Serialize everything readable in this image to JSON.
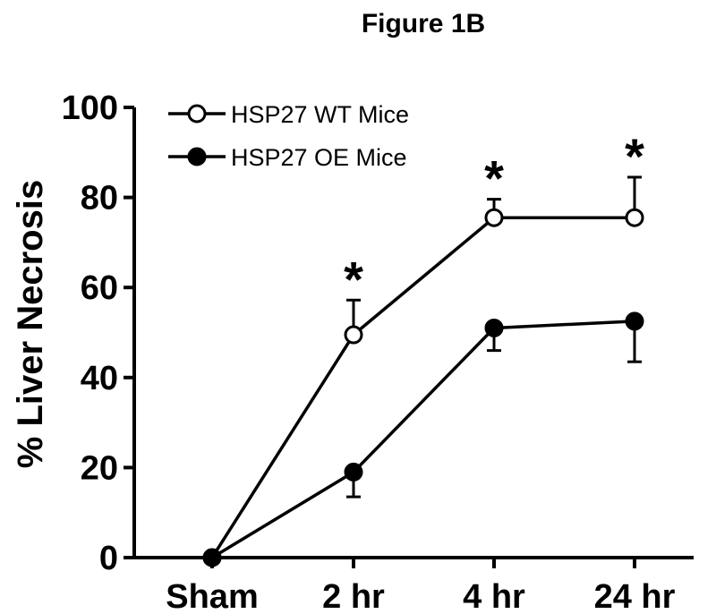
{
  "chart_data": {
    "type": "line",
    "title": "Figure 1B",
    "ylabel": "% Liver Necrosis",
    "xlabel": "",
    "categories": [
      "Sham",
      "2 hr",
      "4 hr",
      "24 hr"
    ],
    "ylim": [
      0,
      100
    ],
    "yticks": [
      0,
      20,
      40,
      60,
      80,
      100
    ],
    "grid": false,
    "legend_position": "top-left",
    "series": [
      {
        "name": "HSP27 WT Mice",
        "marker": "open-circle",
        "values": [
          0,
          49.5,
          75.5,
          75.5
        ],
        "error_upper": [
          0,
          57.2,
          79.6,
          84.5
        ],
        "error_direction": "up",
        "significance": [
          "",
          "*",
          "*",
          "*"
        ]
      },
      {
        "name": "HSP27 OE Mice",
        "marker": "filled-circle",
        "values": [
          0,
          19,
          51,
          52.5
        ],
        "error_lower": [
          0,
          13.5,
          46,
          43.5
        ],
        "error_direction": "down",
        "significance": [
          "",
          "",
          "",
          ""
        ]
      }
    ]
  }
}
